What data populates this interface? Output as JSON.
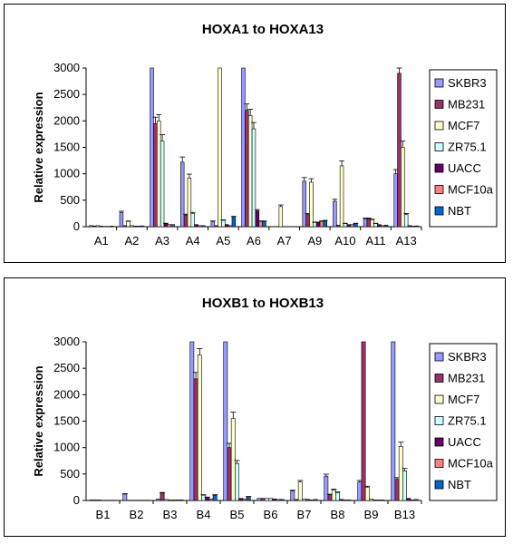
{
  "series_colors": [
    "#9999ff",
    "#993366",
    "#ffffcc",
    "#ccffff",
    "#660066",
    "#ff8080",
    "#0066cc"
  ],
  "chart_data": [
    {
      "type": "bar",
      "title": "HOXA1 to HOXA13",
      "ylabel": "Relative expression",
      "xlabel": "",
      "ylim": [
        0,
        3000
      ],
      "yticks": [
        0,
        500,
        1000,
        1500,
        2000,
        2500,
        3000
      ],
      "grid": false,
      "legend": "right",
      "categories": [
        "A1",
        "A2",
        "A3",
        "A4",
        "A5",
        "A6",
        "A7",
        "A9",
        "A10",
        "A11",
        "A13"
      ],
      "series": [
        {
          "name": "SKBR3",
          "values": [
            20,
            270,
            3000,
            1220,
            100,
            3000,
            0,
            860,
            480,
            150,
            1000
          ]
        },
        {
          "name": "MB231",
          "values": [
            15,
            20,
            1950,
            220,
            20,
            2200,
            0,
            230,
            30,
            150,
            2900
          ]
        },
        {
          "name": "MCF7",
          "values": [
            20,
            100,
            2000,
            920,
            3000,
            2100,
            380,
            840,
            1150,
            130,
            1500
          ]
        },
        {
          "name": "ZR75.1",
          "values": [
            10,
            20,
            1620,
            250,
            120,
            1850,
            0,
            80,
            60,
            60,
            230
          ]
        },
        {
          "name": "UACC",
          "values": [
            5,
            10,
            60,
            40,
            40,
            300,
            0,
            80,
            40,
            40,
            20
          ]
        },
        {
          "name": "MCF10a",
          "values": [
            5,
            10,
            40,
            20,
            20,
            100,
            0,
            100,
            40,
            20,
            10
          ]
        },
        {
          "name": "NBT",
          "values": [
            10,
            15,
            40,
            20,
            180,
            100,
            0,
            110,
            60,
            30,
            15
          ]
        }
      ]
    },
    {
      "type": "bar",
      "title": "HOXB1 to HOXB13",
      "ylabel": "Relative expression",
      "xlabel": "",
      "ylim": [
        0,
        3000
      ],
      "yticks": [
        0,
        500,
        1000,
        1500,
        2000,
        2500,
        3000
      ],
      "grid": false,
      "legend": "right",
      "categories": [
        "B1",
        "B2",
        "B3",
        "B4",
        "B5",
        "B6",
        "B7",
        "B8",
        "B9",
        "B13"
      ],
      "series": [
        {
          "name": "SKBR3",
          "values": [
            10,
            120,
            30,
            3000,
            3000,
            40,
            180,
            460,
            350,
            3000
          ]
        },
        {
          "name": "MB231",
          "values": [
            10,
            5,
            140,
            2300,
            1000,
            40,
            20,
            110,
            3000,
            400
          ]
        },
        {
          "name": "MCF7",
          "values": [
            10,
            5,
            20,
            2750,
            1550,
            40,
            350,
            200,
            250,
            1020
          ]
        },
        {
          "name": "ZR75.1",
          "values": [
            5,
            5,
            10,
            100,
            700,
            40,
            30,
            150,
            30,
            560
          ]
        },
        {
          "name": "UACC",
          "values": [
            5,
            5,
            10,
            60,
            40,
            30,
            20,
            20,
            10,
            40
          ]
        },
        {
          "name": "MCF10a",
          "values": [
            5,
            5,
            10,
            30,
            30,
            20,
            10,
            10,
            10,
            10
          ]
        },
        {
          "name": "NBT",
          "values": [
            5,
            5,
            10,
            100,
            70,
            20,
            20,
            10,
            10,
            20
          ]
        }
      ]
    }
  ]
}
